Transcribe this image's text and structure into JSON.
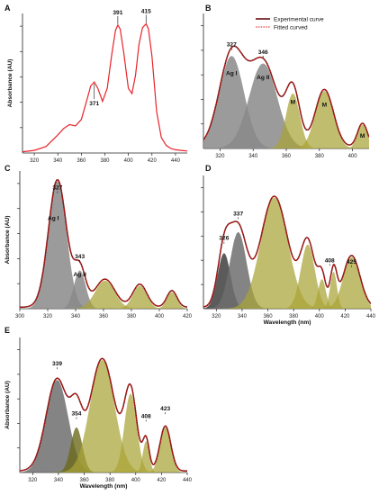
{
  "colors": {
    "experimental": "#6b0f0f",
    "fitted": "#e0201a",
    "single": "#e8232a",
    "gauss_gray_light": "#8e8e8e",
    "gauss_gray_dark": "#4a4a4a",
    "gauss_olive": "#a9a436",
    "gauss_olive_dark": "#6b6a1c"
  },
  "legend": {
    "experimental": "Experimental curve",
    "fitted": "Fitted curved"
  },
  "chart_data": [
    {
      "panel": "A",
      "type": "line",
      "ylabel": "Absorbance (AU)",
      "xlabel": "",
      "xlim": [
        310,
        450
      ],
      "xticks": [
        "320",
        "340",
        "360",
        "380",
        "400",
        "420",
        "440"
      ],
      "curves": [
        {
          "x": [
            310,
            320,
            330,
            340,
            345,
            350,
            355,
            360,
            365,
            368,
            371,
            374,
            378,
            382,
            386,
            389,
            391,
            393,
            396,
            400,
            403,
            406,
            409,
            412,
            415,
            417,
            420,
            424,
            428,
            432,
            436,
            440,
            445,
            450
          ],
          "y": [
            0.01,
            0.02,
            0.05,
            0.14,
            0.19,
            0.22,
            0.21,
            0.26,
            0.42,
            0.52,
            0.55,
            0.5,
            0.4,
            0.5,
            0.77,
            0.95,
            0.99,
            0.96,
            0.78,
            0.5,
            0.46,
            0.6,
            0.84,
            0.97,
            1.0,
            0.96,
            0.75,
            0.32,
            0.12,
            0.06,
            0.035,
            0.025,
            0.02,
            0.015
          ]
        }
      ],
      "ylim": [
        0,
        1.08
      ],
      "annotations": [
        {
          "text": "371",
          "x": 371,
          "y": 0.55
        },
        {
          "text": "391",
          "x": 391,
          "y": 0.99
        },
        {
          "text": "415",
          "x": 415,
          "y": 1.0
        }
      ]
    },
    {
      "panel": "B",
      "type": "area",
      "ylabel": "",
      "xlabel": "",
      "xlim": [
        310,
        410
      ],
      "xticks": [
        "320",
        "340",
        "360",
        "380",
        "400"
      ],
      "ylim": [
        0,
        1.08
      ],
      "gaussians": [
        {
          "center": 327,
          "amp": 0.74,
          "sigma": 7.5,
          "fill": "gray_light"
        },
        {
          "center": 346,
          "amp": 0.68,
          "sigma": 8.5,
          "fill": "gray_light"
        },
        {
          "center": 364,
          "amp": 0.44,
          "sigma": 4.2,
          "fill": "olive"
        },
        {
          "center": 383,
          "amp": 0.46,
          "sigma": 5.5,
          "fill": "olive"
        },
        {
          "center": 406,
          "amp": 0.19,
          "sigma": 3.0,
          "fill": "olive"
        }
      ],
      "annotations": [
        {
          "text": "327",
          "x": 327,
          "y": 0.78
        },
        {
          "text": "346",
          "x": 346,
          "y": 0.72
        },
        {
          "text": "Ag I",
          "x": 327,
          "y": 0.55
        },
        {
          "text": "Ag II",
          "x": 346,
          "y": 0.52
        },
        {
          "text": "M",
          "x": 364,
          "y": 0.32
        },
        {
          "text": "M",
          "x": 383,
          "y": 0.3
        },
        {
          "text": "M",
          "x": 406,
          "y": 0.05
        }
      ],
      "legend": true
    },
    {
      "panel": "C",
      "type": "area",
      "ylabel": "Absorbance (AU)",
      "xlabel": "",
      "xlim": [
        300,
        420
      ],
      "xticks": [
        "300",
        "320",
        "340",
        "360",
        "380",
        "400",
        "420"
      ],
      "ylim": [
        0,
        1.08
      ],
      "gaussians": [
        {
          "center": 327,
          "amp": 1.0,
          "sigma": 6.5,
          "fill": "gray_light"
        },
        {
          "center": 343,
          "amp": 0.3,
          "sigma": 4.2,
          "fill": "gray_light"
        },
        {
          "center": 361,
          "amp": 0.22,
          "sigma": 7.0,
          "fill": "olive"
        },
        {
          "center": 386,
          "amp": 0.18,
          "sigma": 5.0,
          "fill": "olive"
        },
        {
          "center": 409,
          "amp": 0.13,
          "sigma": 3.6,
          "fill": "olive"
        }
      ],
      "annotations": [
        {
          "text": "327",
          "x": 327,
          "y": 0.9
        },
        {
          "text": "Ag I",
          "x": 324,
          "y": 0.66
        },
        {
          "text": "343",
          "x": 343,
          "y": 0.36
        },
        {
          "text": "Ag II",
          "x": 343,
          "y": 0.22
        }
      ]
    },
    {
      "panel": "D",
      "type": "area",
      "ylabel": "",
      "xlabel": "Wavelength (nm)",
      "xlim": [
        310,
        440
      ],
      "xticks": [
        "320",
        "340",
        "360",
        "380",
        "400",
        "420",
        "440"
      ],
      "ylim": [
        0,
        1.08
      ],
      "gaussians": [
        {
          "center": 326,
          "amp": 0.45,
          "sigma": 5.0,
          "fill": "gray_dark"
        },
        {
          "center": 337,
          "amp": 0.62,
          "sigma": 6.5,
          "fill": "gray_mid"
        },
        {
          "center": 365,
          "amp": 0.9,
          "sigma": 10.5,
          "fill": "olive"
        },
        {
          "center": 391,
          "amp": 0.52,
          "sigma": 5.5,
          "fill": "olive"
        },
        {
          "center": 402,
          "amp": 0.24,
          "sigma": 3.0,
          "fill": "olive"
        },
        {
          "center": 411,
          "amp": 0.3,
          "sigma": 2.6,
          "fill": "olive"
        },
        {
          "center": 425,
          "amp": 0.42,
          "sigma": 6.5,
          "fill": "olive"
        }
      ],
      "annotations": [
        {
          "text": "326",
          "x": 326,
          "y": 0.52
        },
        {
          "text": "337",
          "x": 337,
          "y": 0.72
        },
        {
          "text": "408",
          "x": 408,
          "y": 0.34
        },
        {
          "text": "425",
          "x": 425,
          "y": 0.33
        }
      ]
    },
    {
      "panel": "E",
      "type": "area",
      "ylabel": "Absorbance (AU)",
      "xlabel": "Wavelength (nm)",
      "xlim": [
        310,
        440
      ],
      "xticks": [
        "320",
        "340",
        "360",
        "380",
        "400",
        "420",
        "440"
      ],
      "ylim": [
        0,
        1.08
      ],
      "gaussians": [
        {
          "center": 339,
          "amp": 0.74,
          "sigma": 8.5,
          "fill": "gray_mid"
        },
        {
          "center": 354,
          "amp": 0.36,
          "sigma": 4.5,
          "fill": "olive_dark"
        },
        {
          "center": 374,
          "amp": 0.9,
          "sigma": 9.5,
          "fill": "olive"
        },
        {
          "center": 396,
          "amp": 0.63,
          "sigma": 4.8,
          "fill": "olive"
        },
        {
          "center": 408,
          "amp": 0.25,
          "sigma": 2.5,
          "fill": "olive"
        },
        {
          "center": 423,
          "amp": 0.36,
          "sigma": 4.2,
          "fill": "olive"
        }
      ],
      "annotations": [
        {
          "text": "339",
          "x": 339,
          "y": 0.82
        },
        {
          "text": "354",
          "x": 354,
          "y": 0.42
        },
        {
          "text": "408",
          "x": 408,
          "y": 0.4
        },
        {
          "text": "423",
          "x": 423,
          "y": 0.46
        }
      ]
    }
  ]
}
